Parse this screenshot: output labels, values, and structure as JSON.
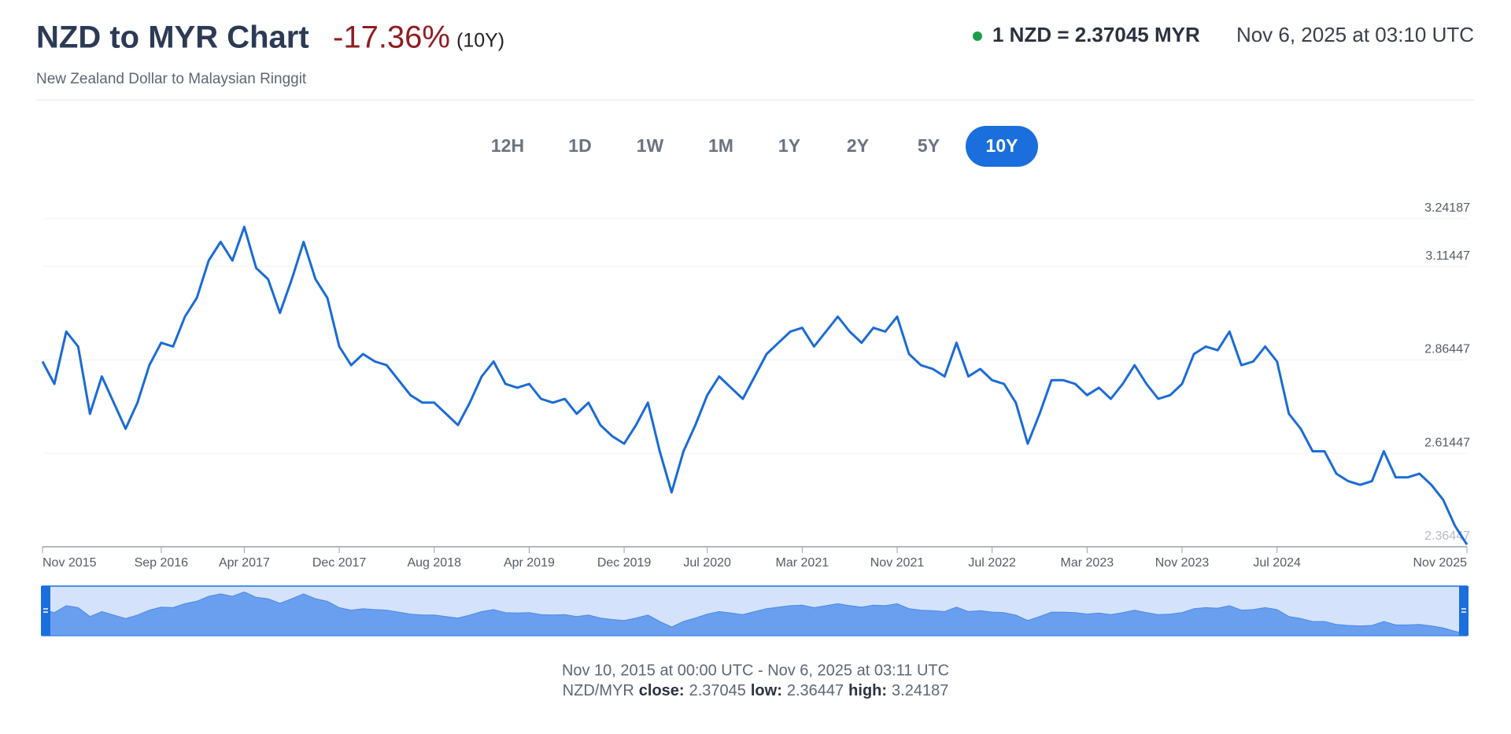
{
  "header": {
    "title": "NZD to MYR Chart",
    "change": "-17.36%",
    "period": "(10Y)",
    "subtitle": "New Zealand Dollar to Malaysian Ringgit",
    "rate": "1 NZD = 2.37045 MYR",
    "timestamp": "Nov 6, 2025 at 03:10 UTC"
  },
  "ranges": {
    "buttons": [
      "12H",
      "1D",
      "1W",
      "1M",
      "1Y",
      "2Y",
      "5Y",
      "10Y"
    ],
    "active": "10Y"
  },
  "footer": {
    "range": "Nov 10, 2015 at 00:00 UTC - Nov 6, 2025 at 03:11 UTC",
    "pair": "NZD/MYR",
    "close_label": "close:",
    "close": 2.37045,
    "low_label": "low:",
    "low": 2.36447,
    "high_label": "high:",
    "high": 3.24187
  },
  "chart_data": {
    "type": "line",
    "color": "#1a6bd6",
    "x": [
      "2015-11",
      "2015-12",
      "2016-01",
      "2016-02",
      "2016-03",
      "2016-04",
      "2016-05",
      "2016-06",
      "2016-07",
      "2016-08",
      "2016-09",
      "2016-10",
      "2016-11",
      "2016-12",
      "2017-01",
      "2017-02",
      "2017-03",
      "2017-04",
      "2017-05",
      "2017-06",
      "2017-07",
      "2017-08",
      "2017-09",
      "2017-10",
      "2017-11",
      "2017-12",
      "2018-01",
      "2018-02",
      "2018-03",
      "2018-04",
      "2018-05",
      "2018-06",
      "2018-07",
      "2018-08",
      "2018-09",
      "2018-10",
      "2018-11",
      "2018-12",
      "2019-01",
      "2019-02",
      "2019-03",
      "2019-04",
      "2019-05",
      "2019-06",
      "2019-07",
      "2019-08",
      "2019-09",
      "2019-10",
      "2019-11",
      "2019-12",
      "2020-01",
      "2020-02",
      "2020-03",
      "2020-04",
      "2020-05",
      "2020-06",
      "2020-07",
      "2020-08",
      "2020-09",
      "2020-10",
      "2020-11",
      "2020-12",
      "2021-01",
      "2021-02",
      "2021-03",
      "2021-04",
      "2021-05",
      "2021-06",
      "2021-07",
      "2021-08",
      "2021-09",
      "2021-10",
      "2021-11",
      "2021-12",
      "2022-01",
      "2022-02",
      "2022-03",
      "2022-04",
      "2022-05",
      "2022-06",
      "2022-07",
      "2022-08",
      "2022-09",
      "2022-10",
      "2022-11",
      "2022-12",
      "2023-01",
      "2023-02",
      "2023-03",
      "2023-04",
      "2023-05",
      "2023-06",
      "2023-07",
      "2023-08",
      "2023-09",
      "2023-10",
      "2023-11",
      "2023-12",
      "2024-01",
      "2024-02",
      "2024-03",
      "2024-04",
      "2024-05",
      "2024-06",
      "2024-07",
      "2024-08",
      "2024-09",
      "2024-10",
      "2024-11",
      "2024-12",
      "2025-01",
      "2025-02",
      "2025-03",
      "2025-04",
      "2025-05",
      "2025-06",
      "2025-07",
      "2025-08",
      "2025-09",
      "2025-10",
      "2025-11"
    ],
    "values": [
      2.86,
      2.8,
      2.94,
      2.9,
      2.72,
      2.82,
      2.75,
      2.68,
      2.75,
      2.85,
      2.91,
      2.9,
      2.98,
      3.03,
      3.13,
      3.18,
      3.13,
      3.22,
      3.11,
      3.08,
      2.99,
      3.08,
      3.18,
      3.08,
      3.03,
      2.9,
      2.85,
      2.88,
      2.86,
      2.85,
      2.81,
      2.77,
      2.75,
      2.75,
      2.72,
      2.69,
      2.75,
      2.82,
      2.86,
      2.8,
      2.79,
      2.8,
      2.76,
      2.75,
      2.76,
      2.72,
      2.75,
      2.69,
      2.66,
      2.64,
      2.69,
      2.75,
      2.62,
      2.51,
      2.62,
      2.69,
      2.77,
      2.82,
      2.79,
      2.76,
      2.82,
      2.88,
      2.91,
      2.94,
      2.95,
      2.9,
      2.94,
      2.98,
      2.94,
      2.91,
      2.95,
      2.94,
      2.98,
      2.88,
      2.85,
      2.84,
      2.82,
      2.91,
      2.82,
      2.84,
      2.81,
      2.8,
      2.75,
      2.64,
      2.72,
      2.81,
      2.81,
      2.8,
      2.77,
      2.79,
      2.76,
      2.8,
      2.85,
      2.8,
      2.76,
      2.77,
      2.8,
      2.88,
      2.9,
      2.89,
      2.94,
      2.85,
      2.86,
      2.9,
      2.86,
      2.72,
      2.68,
      2.62,
      2.62,
      2.56,
      2.54,
      2.53,
      2.54,
      2.62,
      2.55,
      2.55,
      2.56,
      2.53,
      2.49,
      2.42,
      2.37045
    ],
    "ylim": [
      2.36447,
      3.24187
    ],
    "yticks": [
      2.36447,
      2.61447,
      2.86447,
      3.11447,
      3.24187
    ],
    "xticks": [
      {
        "value": "2015-11",
        "label": "Nov 2015"
      },
      {
        "value": "2016-09",
        "label": "Sep 2016"
      },
      {
        "value": "2017-04",
        "label": "Apr 2017"
      },
      {
        "value": "2017-12",
        "label": "Dec 2017"
      },
      {
        "value": "2018-08",
        "label": "Aug 2018"
      },
      {
        "value": "2019-04",
        "label": "Apr 2019"
      },
      {
        "value": "2019-12",
        "label": "Dec 2019"
      },
      {
        "value": "2020-07",
        "label": "Jul 2020"
      },
      {
        "value": "2021-03",
        "label": "Mar 2021"
      },
      {
        "value": "2021-11",
        "label": "Nov 2021"
      },
      {
        "value": "2022-07",
        "label": "Jul 2022"
      },
      {
        "value": "2023-03",
        "label": "Mar 2023"
      },
      {
        "value": "2023-11",
        "label": "Nov 2023"
      },
      {
        "value": "2024-07",
        "label": "Jul 2024"
      },
      {
        "value": "2025-11",
        "label": "Nov 2025"
      }
    ],
    "grid": true
  }
}
